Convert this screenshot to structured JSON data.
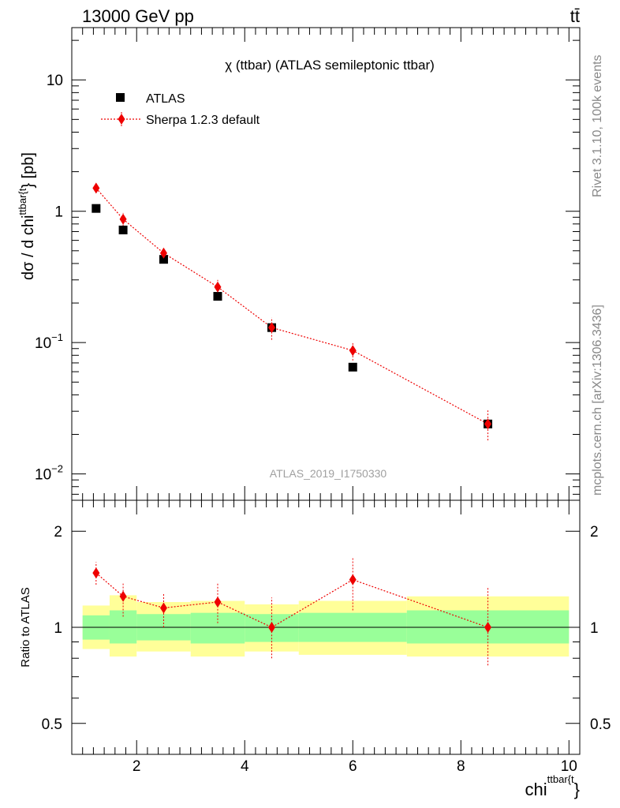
{
  "header": {
    "left": "13000 GeV pp",
    "right": "tt̄"
  },
  "side_labels": {
    "top": "Rivet 3.1.10,  100k events",
    "bottom": "mcplots.cern.ch [arXiv:1306.3436]"
  },
  "colors": {
    "mc": "#ee0000",
    "data": "#000000",
    "band_outer": "#ffff99",
    "band_inner": "#99ff99"
  },
  "chart_data": [
    {
      "type": "scatter",
      "title": "χ (ttbar) (ATLAS semileptonic ttbar)",
      "watermark": "ATLAS_2019_I1750330",
      "ylabel": {
        "main": "dσ / d chi",
        "sup": "ttbar{t",
        "tail": "} [pb]"
      },
      "yscale": "log",
      "xlim": [
        0.8,
        10.2
      ],
      "ylim": [
        0.0063,
        25
      ],
      "xticks": [
        2,
        4,
        6,
        8,
        10
      ],
      "yticks": [
        {
          "value": 10,
          "base": "10",
          "exp": ""
        },
        {
          "value": 1,
          "base": "1",
          "exp": ""
        },
        {
          "value": 0.1,
          "base": "10",
          "exp": "−1"
        },
        {
          "value": 0.01,
          "base": "10",
          "exp": "−2"
        }
      ],
      "legend": {
        "position": "top-left",
        "entries": [
          "ATLAS",
          "Sherpa 1.2.3 default"
        ]
      },
      "series": [
        {
          "name": "ATLAS",
          "marker": "square",
          "x": [
            1.25,
            1.75,
            2.5,
            3.5,
            4.5,
            6.0,
            8.5
          ],
          "xerr": [
            0.25,
            0.25,
            0.5,
            0.5,
            0.5,
            1.0,
            1.5
          ],
          "y": [
            1.05,
            0.72,
            0.43,
            0.225,
            0.13,
            0.065,
            0.024
          ]
        },
        {
          "name": "Sherpa 1.2.3 default",
          "marker": "diamond",
          "x": [
            1.25,
            1.75,
            2.5,
            3.5,
            4.5,
            6.0,
            8.5
          ],
          "y": [
            1.5,
            0.87,
            0.48,
            0.265,
            0.13,
            0.087,
            0.024
          ],
          "yerr_low": [
            1.38,
            0.77,
            0.44,
            0.235,
            0.105,
            0.073,
            0.018
          ],
          "yerr_high": [
            1.63,
            0.97,
            0.52,
            0.3,
            0.155,
            0.1,
            0.031
          ]
        }
      ]
    },
    {
      "type": "scatter",
      "ylabel": "Ratio to ATLAS",
      "xlabel": {
        "main": "chi",
        "sup": "ttbar{t",
        "tail": "}"
      },
      "yscale": "log",
      "xlim": [
        0.8,
        10.2
      ],
      "ylim": [
        0.4,
        2.5
      ],
      "xticks": [
        2,
        4,
        6,
        8,
        10
      ],
      "yticks": [
        0.5,
        1,
        2
      ],
      "band": {
        "x_low": [
          1.0,
          1.5,
          2.0,
          3.0,
          4.0,
          5.0,
          7.0
        ],
        "x_high": [
          1.5,
          2.0,
          3.0,
          4.0,
          5.0,
          7.0,
          10.0
        ],
        "outer_low": [
          0.855,
          0.81,
          0.84,
          0.81,
          0.84,
          0.82,
          0.81
        ],
        "outer_high": [
          1.17,
          1.26,
          1.2,
          1.21,
          1.18,
          1.21,
          1.25
        ],
        "inner_low": [
          0.915,
          0.89,
          0.91,
          0.89,
          0.9,
          0.9,
          0.89
        ],
        "inner_high": [
          1.09,
          1.13,
          1.1,
          1.11,
          1.1,
          1.11,
          1.13
        ]
      },
      "series": [
        {
          "name": "Sherpa 1.2.3 default",
          "x": [
            1.25,
            1.75,
            2.5,
            3.5,
            4.5,
            6.0,
            8.5
          ],
          "y": [
            1.48,
            1.25,
            1.15,
            1.2,
            1.0,
            1.41,
            1.0
          ],
          "yerr_low": [
            1.36,
            1.08,
            1.0,
            1.03,
            0.8,
            1.13,
            0.76
          ],
          "yerr_high": [
            1.6,
            1.37,
            1.27,
            1.38,
            1.24,
            1.66,
            1.34
          ]
        }
      ]
    }
  ]
}
